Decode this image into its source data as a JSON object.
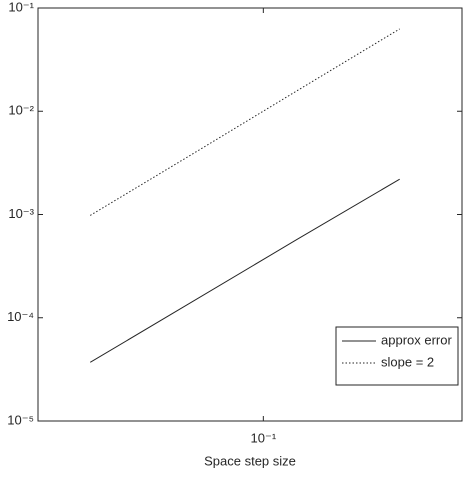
{
  "chart_data": {
    "type": "line",
    "xlabel": "Space step size",
    "x": [
      0.03125,
      0.0625,
      0.125,
      0.25
    ],
    "series": [
      {
        "name": "approx error",
        "color": "#262626",
        "style": "solid",
        "values": [
          3.7e-05,
          0.000145,
          0.00057,
          0.0022
        ]
      },
      {
        "name": "slope = 2",
        "color": "#262626",
        "style": "dotted",
        "values": [
          0.00098,
          0.0039,
          0.0157,
          0.0627
        ]
      }
    ],
    "xscale": "log",
    "yscale": "log",
    "xlim": [
      0.022,
      0.38
    ],
    "ylim": [
      1e-05,
      0.1
    ],
    "xticks": [
      {
        "value": 0.1,
        "label": "10⁻¹"
      }
    ],
    "yticks": [
      {
        "value": 1e-05,
        "label": "10⁻⁵"
      },
      {
        "value": 0.0001,
        "label": "10⁻⁴"
      },
      {
        "value": 0.001,
        "label": "10⁻³"
      },
      {
        "value": 0.01,
        "label": "10⁻²"
      },
      {
        "value": 0.1,
        "label": "10⁻¹"
      }
    ],
    "legend": "lower right",
    "grid": false
  }
}
